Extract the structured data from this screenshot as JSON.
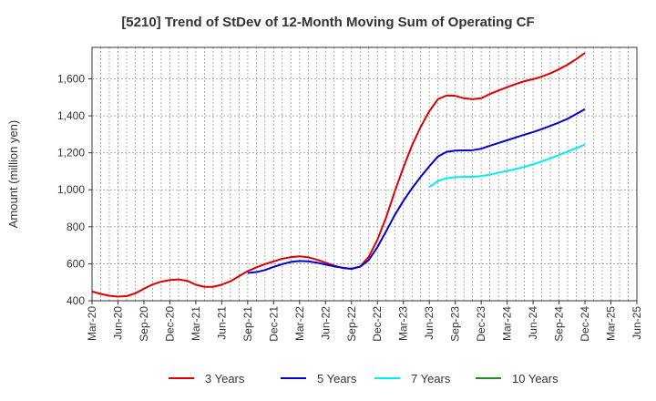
{
  "chart_data": {
    "type": "line",
    "title": "[5210]  Trend of StDev of 12-Month Moving Sum of Operating CF",
    "ylabel": "Amount (million yen)",
    "xlabel": "",
    "ylim": [
      400,
      1770
    ],
    "yticks": [
      400,
      600,
      800,
      1000,
      1200,
      1400,
      1600
    ],
    "yticklabels": [
      "400",
      "600",
      "800",
      "1,000",
      "1,200",
      "1,400",
      "1,600"
    ],
    "xticklabels": [
      "Mar-20",
      "Jun-20",
      "Sep-20",
      "Dec-20",
      "Mar-21",
      "Jun-21",
      "Sep-21",
      "Dec-21",
      "Mar-22",
      "Jun-22",
      "Sep-22",
      "Dec-22",
      "Mar-23",
      "Jun-23",
      "Sep-23",
      "Dec-23",
      "Mar-24",
      "Jun-24",
      "Sep-24",
      "Dec-24",
      "Mar-25",
      "Jun-25"
    ],
    "grid": true,
    "legend_position": "bottom",
    "series": [
      {
        "name": "3 Years",
        "color": "#dd0000",
        "start_index": 0,
        "values": [
          450,
          437,
          427,
          422,
          425,
          440,
          465,
          488,
          503,
          512,
          515,
          508,
          487,
          475,
          475,
          487,
          505,
          533,
          560,
          580,
          598,
          613,
          627,
          636,
          640,
          635,
          622,
          606,
          590,
          577,
          572,
          585,
          638,
          730,
          850,
          990,
          1120,
          1240,
          1340,
          1425,
          1490,
          1510,
          1508,
          1495,
          1490,
          1495,
          1518,
          1537,
          1555,
          1572,
          1587,
          1598,
          1612,
          1630,
          1652,
          1677,
          1707,
          1740
        ]
      },
      {
        "name": "5 Years",
        "color": "#0000cc",
        "start_index": 18,
        "values": [
          550,
          555,
          566,
          583,
          598,
          610,
          615,
          613,
          606,
          596,
          586,
          578,
          573,
          584,
          620,
          690,
          775,
          863,
          940,
          1008,
          1070,
          1127,
          1180,
          1205,
          1212,
          1213,
          1214,
          1222,
          1238,
          1253,
          1268,
          1283,
          1298,
          1312,
          1328,
          1346,
          1364,
          1384,
          1410,
          1436
        ]
      },
      {
        "name": "7 Years",
        "color": "#00eeee",
        "start_index": 39,
        "values": [
          1015,
          1048,
          1063,
          1068,
          1070,
          1070,
          1074,
          1082,
          1092,
          1102,
          1112,
          1124,
          1138,
          1153,
          1170,
          1188,
          1207,
          1226,
          1245
        ]
      },
      {
        "name": "10 Years",
        "color": "#228b22",
        "start_index": 0,
        "values": []
      }
    ]
  }
}
